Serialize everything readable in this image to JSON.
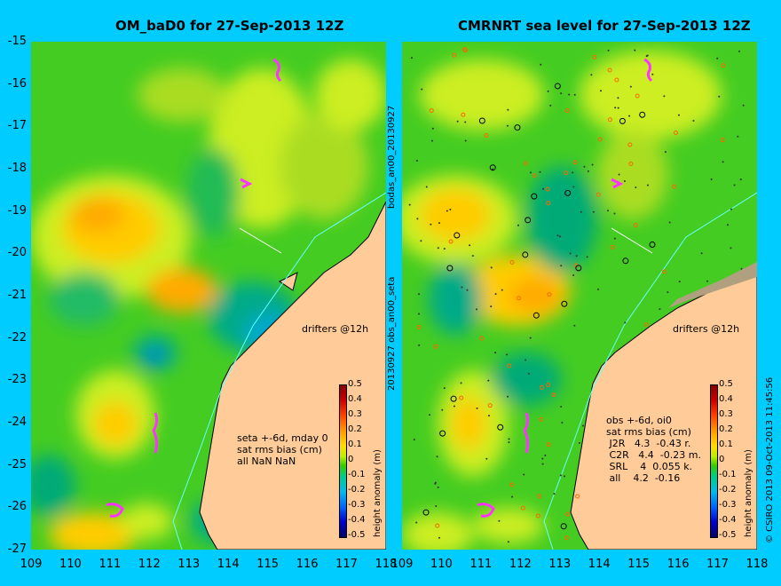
{
  "titles": {
    "left": "OM_baD0 for 27-Sep-2013 12Z",
    "right": "CMRNRT sea level  for 27-Sep-2013 12Z"
  },
  "y_ticks": [
    "-15",
    "-16",
    "-17",
    "-18",
    "-19",
    "-20",
    "-21",
    "-22",
    "-23",
    "-24",
    "-25",
    "-26",
    "-27"
  ],
  "x_ticks": [
    "109",
    "110",
    "111",
    "112",
    "113",
    "114",
    "115",
    "116",
    "117",
    "118"
  ],
  "side_labels": {
    "file_top": "bodas_an00_20130927",
    "file_bottom": "20130927 obs_an00_seta",
    "credit": "© CSIRO 2013   09-Oct-2013 11:45:56"
  },
  "colorbar": {
    "labels": [
      "0.5",
      "0.4",
      "0.3",
      "0.2",
      "0.1",
      "0",
      "-0.1",
      "-0.2",
      "-0.3",
      "-0.4",
      "-0.5"
    ],
    "title": "height anomaly (m)"
  },
  "left_info": "seta +-6d, mday 0\nsat rms bias (cm)\nall NaN NaN",
  "right_info": "obs +-6d, oi0\nsat rms bias (cm)\n J2R   4.3  -0.43 r.\n C2R   4.4  -0.23 m.\n SRL    4  0.055 k.\n all    4.2  -0.16",
  "drifters_label": "drifters @12h",
  "colors": {
    "background": "#00ccff",
    "land": "#ffcc99",
    "field_green": "#33cc33",
    "field_yellow": "#ccee00",
    "field_orange": "#ffaa00",
    "drifter": "#ff33ff"
  }
}
